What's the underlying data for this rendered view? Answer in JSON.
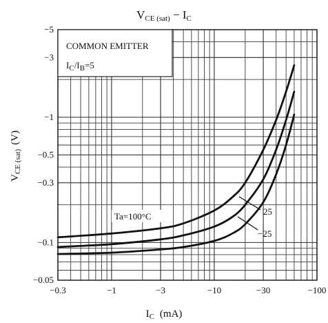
{
  "chart_data": {
    "type": "line",
    "title": {
      "main": "V",
      "main_sub": "CE (sat)",
      "rest": " − I",
      "rest_sub": "C"
    },
    "xlabel": {
      "main": "I",
      "sub": "C",
      "unit": "(mA)"
    },
    "ylabel": {
      "main": "V",
      "sub": "CE (sat)",
      "unit": "(V)"
    },
    "x_scale": "log",
    "y_scale": "log",
    "xlim": [
      -0.3,
      -100
    ],
    "ylim": [
      -0.05,
      -5
    ],
    "x_ticks": [
      {
        "value": -0.3,
        "label": "−0.3"
      },
      {
        "value": -1,
        "label": "−1"
      },
      {
        "value": -3,
        "label": "−3"
      },
      {
        "value": -10,
        "label": "−10"
      },
      {
        "value": -30,
        "label": "−30"
      },
      {
        "value": -100,
        "label": "−100"
      }
    ],
    "y_ticks": [
      {
        "value": -5,
        "label": "−5"
      },
      {
        "value": -3,
        "label": "−3"
      },
      {
        "value": -1,
        "label": "−1"
      },
      {
        "value": -0.5,
        "label": "−0.5"
      },
      {
        "value": -0.3,
        "label": "−0.3"
      },
      {
        "value": -0.1,
        "label": "−0.1"
      },
      {
        "value": -0.05,
        "label": "−0.05"
      }
    ],
    "grid": true,
    "annotation_box": {
      "line1": "COMMON EMITTER",
      "line2_main": "I",
      "line2_sub1": "C",
      "line2_mid": "/I",
      "line2_sub2": "B",
      "line2_rest": "=5"
    },
    "series": [
      {
        "name": "Ta=100°C",
        "x": [
          -0.3,
          -1,
          -3,
          -5,
          -10,
          -15,
          -20,
          -30,
          -40,
          -50,
          -60
        ],
        "y": [
          -0.11,
          -0.118,
          -0.13,
          -0.142,
          -0.18,
          -0.23,
          -0.3,
          -0.55,
          -0.95,
          -1.6,
          -2.6
        ]
      },
      {
        "name": "25",
        "x": [
          -0.3,
          -1,
          -3,
          -5,
          -10,
          -15,
          -20,
          -30,
          -40,
          -50,
          -60
        ],
        "y": [
          -0.092,
          -0.097,
          -0.106,
          -0.114,
          -0.134,
          -0.16,
          -0.2,
          -0.32,
          -0.55,
          -0.95,
          -1.6
        ]
      },
      {
        "name": "−25",
        "x": [
          -0.3,
          -1,
          -3,
          -5,
          -10,
          -15,
          -20,
          -30,
          -40,
          -50,
          -60
        ],
        "y": [
          -0.081,
          -0.083,
          -0.088,
          -0.092,
          -0.103,
          -0.118,
          -0.14,
          -0.21,
          -0.35,
          -0.6,
          -1.05
        ]
      }
    ]
  }
}
